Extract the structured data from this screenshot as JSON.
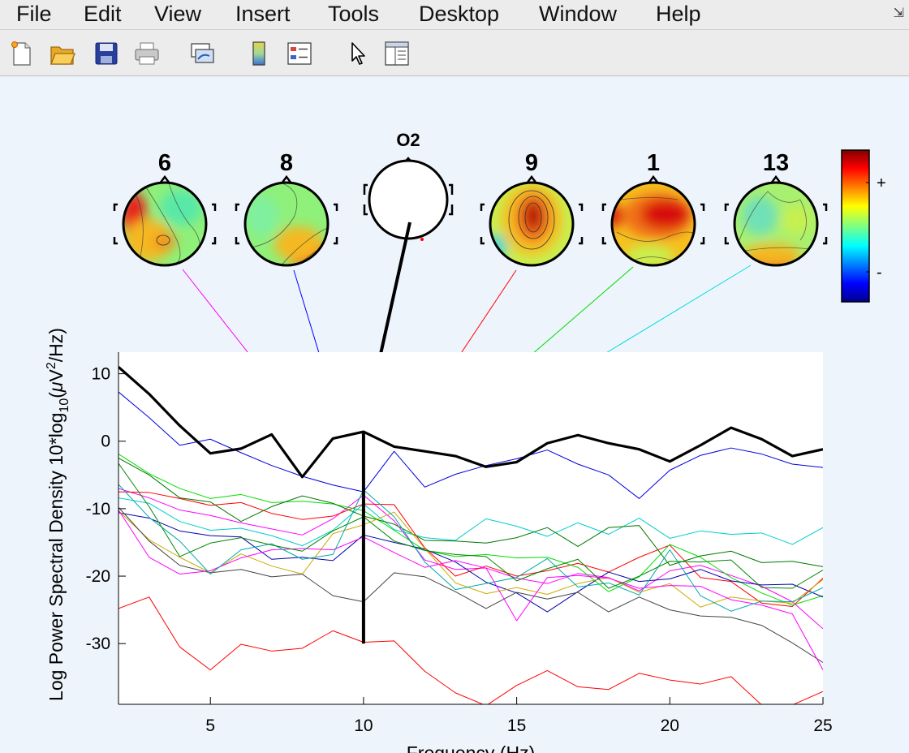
{
  "menu": {
    "items": [
      "File",
      "Edit",
      "View",
      "Insert",
      "Tools",
      "Desktop",
      "Window",
      "Help"
    ],
    "dock_glyph": "⇲"
  },
  "toolbar": {
    "icons": [
      "new-file-icon",
      "open-folder-icon",
      "save-icon",
      "print-icon",
      "link-plot-icon",
      "colorbar-icon",
      "legend-icon",
      "pointer-icon",
      "property-editor-icon"
    ]
  },
  "topomaps": {
    "channel_label": "O2",
    "labels": [
      "6",
      "8",
      "9",
      "1",
      "13"
    ]
  },
  "colorbar": {
    "plus_label": "+",
    "minus_label": "-"
  },
  "chart_data": {
    "type": "line",
    "xlabel": "Frequency (Hz)",
    "ylabel_prefix": "Log Power Spectral Density 10*log",
    "ylabel_sub": "10",
    "ylabel_suffix_open": "(",
    "ylabel_mu": "μ",
    "ylabel_v": "V",
    "ylabel_sup": "2",
    "ylabel_suffix_close": "/Hz)",
    "xlim": [
      2,
      25
    ],
    "ylim": [
      -39,
      13.2
    ],
    "xticks": [
      5,
      10,
      15,
      20,
      25
    ],
    "yticks": [
      10,
      0,
      -10,
      -20,
      -30
    ],
    "marker_x": 10,
    "marker_bottom": -30,
    "x": [
      2,
      3,
      4,
      5,
      6,
      7,
      8,
      9,
      10,
      11,
      12,
      13,
      14,
      15,
      16,
      17,
      18,
      19,
      20,
      21,
      22,
      23,
      24,
      25
    ],
    "series": [
      {
        "color": "#000000",
        "width": 3.2,
        "values": [
          11,
          7,
          2.3,
          -1.8,
          -1.1,
          1,
          -5.3,
          0.4,
          1.4,
          -0.8,
          -1.5,
          -2.2,
          -3.8,
          -3.1,
          -0.3,
          0.9,
          -0.3,
          -1.2,
          -3,
          -0.6,
          2,
          0.3,
          -2.2,
          -1.2
        ]
      },
      {
        "color": "#0000dd",
        "width": 1,
        "values": [
          7.3,
          3.5,
          -0.6,
          0.3,
          -1.7,
          -3.6,
          -5.2,
          -6.5,
          -7.5,
          -1.5,
          -6.8,
          -4.9,
          -3.6,
          -2.6,
          -1.3,
          -3.4,
          -5,
          -8.5,
          -4.3,
          -2.1,
          -1,
          -1.9,
          -3.4,
          -3.9
        ]
      },
      {
        "color": "#ff00ff",
        "width": 1,
        "values": [
          -7,
          -8.4,
          -10.2,
          -11,
          -12.1,
          -13,
          -13.9,
          -11.5,
          -8,
          -11.8,
          -17.6,
          -19,
          -18.8,
          -20.3,
          -21.1,
          -19.6,
          -20.2,
          -22.2,
          -19.2,
          -18.4,
          -19.9,
          -21.5,
          -23.8,
          -27.8
        ]
      },
      {
        "color": "#ff0000",
        "width": 1,
        "values": [
          -7.5,
          -7.6,
          -8.5,
          -9.5,
          -9.1,
          -10.7,
          -11.6,
          -11.1,
          -9.3,
          -9.4,
          -15.8,
          -20,
          -18.5,
          -20,
          -19.2,
          -18.1,
          -19.4,
          -17.2,
          -15.4,
          -20.2,
          -20.8,
          -24,
          -24.5,
          -20.3
        ]
      },
      {
        "color": "#00dd00",
        "width": 1,
        "values": [
          -1.9,
          -4.8,
          -7,
          -8.5,
          -7.9,
          -9.1,
          -8.9,
          -9.3,
          -10.3,
          -13.2,
          -16.2,
          -17.1,
          -16.8,
          -17.3,
          -17.2,
          -18.7,
          -22.3,
          -20.1,
          -15.3,
          -17.2,
          -20.2,
          -22.5,
          -24.3,
          -22.9
        ]
      },
      {
        "color": "#00cccc",
        "width": 1,
        "values": [
          -8.4,
          -9.2,
          -11.9,
          -13.2,
          -12.9,
          -14,
          -15.5,
          -13.2,
          -9.3,
          -13.1,
          -14.3,
          -14.7,
          -11.5,
          -12.6,
          -14.1,
          -12.1,
          -13.8,
          -11.4,
          -14.4,
          -13.3,
          -13.8,
          -13.6,
          -15.3,
          -12.8
        ]
      },
      {
        "color": "#007700",
        "width": 1,
        "values": [
          -2.5,
          -5,
          -8.4,
          -9,
          -11.9,
          -9.7,
          -8.1,
          -9.2,
          -11.1,
          -12.3,
          -14.7,
          -14.8,
          -15.1,
          -14.3,
          -12.8,
          -15.6,
          -12.8,
          -12.5,
          -18.4,
          -17,
          -16.3,
          -18,
          -17.8,
          -18.6
        ]
      },
      {
        "color": "#0000aa",
        "width": 1,
        "values": [
          -10.6,
          -11.4,
          -13.3,
          -14,
          -14.2,
          -17.5,
          -17.2,
          -17.7,
          -13.9,
          -15,
          -16,
          -17.9,
          -20.9,
          -22.5,
          -25.3,
          -22.3,
          -19.4,
          -20.8,
          -20.4,
          -19,
          -20.7,
          -21.3,
          -21.2,
          -23.1
        ]
      },
      {
        "color": "#ccaa00",
        "width": 1,
        "values": [
          -10.3,
          -14.6,
          -17.2,
          -19.5,
          -16.7,
          -18.5,
          -19.7,
          -13.7,
          -12.4,
          -10.5,
          -15.9,
          -21,
          -22.6,
          -21.7,
          -22.7,
          -21.1,
          -20.2,
          -22.4,
          -21.1,
          -24.6,
          -23.1,
          -23.7,
          -24,
          -20.5
        ]
      },
      {
        "color": "#444444",
        "width": 1,
        "values": [
          -9.8,
          -14.8,
          -18.4,
          -19.5,
          -19,
          -20.1,
          -19.7,
          -22.9,
          -23.8,
          -19.5,
          -20.1,
          -22.3,
          -24.8,
          -22.4,
          -23.4,
          -22.4,
          -25.3,
          -23.1,
          -25,
          -25.9,
          -26.1,
          -27.3,
          -29.9,
          -32.8
        ]
      },
      {
        "color": "#ff0000",
        "width": 1,
        "values": [
          -24.8,
          -23.1,
          -30.5,
          -33.9,
          -30.1,
          -31.1,
          -30.7,
          -28.1,
          -29.8,
          -29.6,
          -34.1,
          -37.3,
          -39.2,
          -36.2,
          -34,
          -36.4,
          -36.8,
          -34.4,
          -35.4,
          -36,
          -34.9,
          -39.1,
          -39.1,
          -37.1
        ]
      },
      {
        "color": "#ff00ff",
        "width": 1,
        "values": [
          -10.2,
          -17.2,
          -19.7,
          -19.2,
          -17.3,
          -16.1,
          -15.9,
          -16.1,
          -14.2,
          -16.5,
          -18.7,
          -17.7,
          -18.8,
          -26.6,
          -20.2,
          -19.9,
          -20.3,
          -21.8,
          -21.4,
          -21.5,
          -23.5,
          -24.3,
          -25.6,
          -33.9
        ]
      },
      {
        "color": "#00aaaa",
        "width": 1,
        "values": [
          -6.4,
          -11.3,
          -14.8,
          -19.7,
          -16.1,
          -15.2,
          -17.5,
          -16.8,
          -7.2,
          -11.2,
          -17.9,
          -22,
          -21.1,
          -20.2,
          -17.4,
          -21.6,
          -21,
          -22.8,
          -16.1,
          -22.9,
          -25.2,
          -23.7,
          -23.8,
          -21.7
        ]
      },
      {
        "color": "#008800",
        "width": 1,
        "values": [
          -3.3,
          -9.7,
          -17.1,
          -15.1,
          -14.3,
          -15.4,
          -16.3,
          -13.3,
          -11.2,
          -14.8,
          -16.2,
          -16.8,
          -17.1,
          -20.7,
          -18.9,
          -17.5,
          -21.8,
          -20,
          -17.8,
          -17.9,
          -17.6,
          -21.7,
          -21.8,
          -19.1
        ]
      }
    ]
  }
}
